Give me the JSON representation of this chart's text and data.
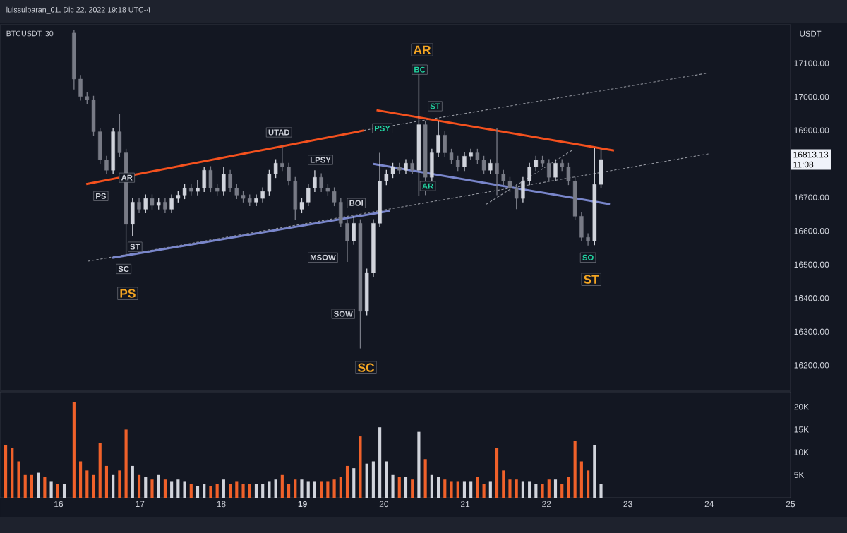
{
  "chart_data": [
    {
      "type": "candlestick",
      "title": "BTCUSDT, 30",
      "ylabel": "USDT",
      "xlim": [
        15.28,
        25.0
      ],
      "ylim": [
        16125,
        17215
      ],
      "tick_labels": "y",
      "yticks": [
        {
          "value": 16200,
          "label": "16200.00"
        },
        {
          "value": 16300,
          "label": "16300.00"
        },
        {
          "value": 16400,
          "label": "16400.00"
        },
        {
          "value": 16500,
          "label": "16500.00"
        },
        {
          "value": 16600,
          "label": "16600.00"
        },
        {
          "value": 16700,
          "label": "16700.00"
        },
        {
          "value": 16900,
          "label": "16900.00"
        },
        {
          "value": 17000,
          "label": "17000.00"
        },
        {
          "value": 17100,
          "label": "17100.00"
        }
      ],
      "series": [
        {
          "type": "candlestick",
          "x": [
            16.19,
            16.27,
            16.35,
            16.43,
            16.51,
            16.59,
            16.67,
            16.75,
            16.83,
            16.91,
            16.99,
            17.07,
            17.15,
            17.23,
            17.31,
            17.39,
            17.47,
            17.55,
            17.63,
            17.71,
            17.79,
            17.87,
            17.95,
            18.03,
            18.11,
            18.19,
            18.27,
            18.35,
            18.43,
            18.51,
            18.59,
            18.67,
            18.75,
            18.83,
            18.91,
            18.99,
            19.07,
            19.15,
            19.23,
            19.31,
            19.39,
            19.47,
            19.55,
            19.63,
            19.71,
            19.79,
            19.87,
            19.95,
            20.03,
            20.11,
            20.19,
            20.27,
            20.35,
            20.43,
            20.51,
            20.59,
            20.67,
            20.75,
            20.83,
            20.91,
            20.99,
            21.07,
            21.15,
            21.23,
            21.31,
            21.39,
            21.47,
            21.55,
            21.63,
            21.71,
            21.79,
            21.87,
            21.95,
            22.03,
            22.11,
            22.19,
            22.27,
            22.35,
            22.43,
            22.51,
            22.59,
            22.67
          ],
          "ohlc": [
            [
              17190,
              17200,
              17022,
              17053
            ],
            [
              17053,
              17065,
              16989,
              17001
            ],
            [
              17001,
              17013,
              16979,
              16991
            ],
            [
              16991,
              17003,
              16884,
              16896
            ],
            [
              16896,
              16908,
              16800,
              16812
            ],
            [
              16812,
              16824,
              16769,
              16781
            ],
            [
              16781,
              16908,
              16769,
              16896
            ],
            [
              16896,
              16949,
              16821,
              16833
            ],
            [
              16833,
              16845,
              16525,
              16620
            ],
            [
              16620,
              16698,
              16586,
              16686
            ],
            [
              16686,
              16698,
              16653,
              16665
            ],
            [
              16665,
              16709,
              16653,
              16697
            ],
            [
              16697,
              16709,
              16664,
              16676
            ],
            [
              16676,
              16698,
              16664,
              16686
            ],
            [
              16686,
              16698,
              16653,
              16665
            ],
            [
              16665,
              16709,
              16653,
              16697
            ],
            [
              16697,
              16719,
              16685,
              16707
            ],
            [
              16707,
              16740,
              16695,
              16728
            ],
            [
              16728,
              16740,
              16706,
              16718
            ],
            [
              16718,
              16752,
              16706,
              16728
            ],
            [
              16728,
              16791,
              16716,
              16781
            ],
            [
              16781,
              16793,
              16716,
              16728
            ],
            [
              16728,
              16740,
              16706,
              16718
            ],
            [
              16718,
              16791,
              16706,
              16770
            ],
            [
              16770,
              16782,
              16716,
              16728
            ],
            [
              16728,
              16740,
              16695,
              16707
            ],
            [
              16707,
              16719,
              16685,
              16697
            ],
            [
              16697,
              16709,
              16674,
              16686
            ],
            [
              16686,
              16709,
              16674,
              16697
            ],
            [
              16697,
              16730,
              16685,
              16718
            ],
            [
              16718,
              16782,
              16706,
              16770
            ],
            [
              16770,
              16814,
              16758,
              16802
            ],
            [
              16802,
              16854,
              16779,
              16791
            ],
            [
              16791,
              16803,
              16737,
              16749
            ],
            [
              16749,
              16761,
              16634,
              16665
            ],
            [
              16665,
              16698,
              16653,
              16686
            ],
            [
              16686,
              16740,
              16674,
              16728
            ],
            [
              16728,
              16781,
              16716,
              16760
            ],
            [
              16760,
              16772,
              16716,
              16728
            ],
            [
              16728,
              16740,
              16706,
              16718
            ],
            [
              16718,
              16730,
              16674,
              16686
            ],
            [
              16686,
              16698,
              16611,
              16623
            ],
            [
              16623,
              16635,
              16508,
              16571
            ],
            [
              16571,
              16644,
              16559,
              16623
            ],
            [
              16623,
              16635,
              16250,
              16361
            ],
            [
              16361,
              16488,
              16349,
              16476
            ],
            [
              16476,
              16635,
              16464,
              16623
            ],
            [
              16623,
              16833,
              16611,
              16749
            ],
            [
              16749,
              16782,
              16737,
              16770
            ],
            [
              16770,
              16803,
              16758,
              16791
            ],
            [
              16791,
              16803,
              16769,
              16781
            ],
            [
              16781,
              16814,
              16769,
              16802
            ],
            [
              16802,
              16814,
              16769,
              16781
            ],
            [
              16781,
              17070,
              16705,
              16917
            ],
            [
              16917,
              16929,
              16707,
              16760
            ],
            [
              16760,
              16845,
              16748,
              16833
            ],
            [
              16833,
              16927,
              16821,
              16886
            ],
            [
              16886,
              16898,
              16821,
              16833
            ],
            [
              16833,
              16845,
              16800,
              16812
            ],
            [
              16812,
              16824,
              16779,
              16791
            ],
            [
              16791,
              16835,
              16779,
              16823
            ],
            [
              16823,
              16845,
              16811,
              16833
            ],
            [
              16833,
              16845,
              16800,
              16812
            ],
            [
              16812,
              16824,
              16769,
              16781
            ],
            [
              16781,
              16814,
              16769,
              16802
            ],
            [
              16802,
              16906,
              16707,
              16770
            ],
            [
              16770,
              16782,
              16737,
              16749
            ],
            [
              16749,
              16761,
              16716,
              16728
            ],
            [
              16728,
              16740,
              16665,
              16697
            ],
            [
              16697,
              16761,
              16685,
              16749
            ],
            [
              16749,
              16803,
              16737,
              16791
            ],
            [
              16791,
              16824,
              16779,
              16812
            ],
            [
              16812,
              16824,
              16790,
              16802
            ],
            [
              16802,
              16814,
              16748,
              16760
            ],
            [
              16760,
              16814,
              16748,
              16802
            ],
            [
              16802,
              16814,
              16779,
              16791
            ],
            [
              16791,
              16803,
              16737,
              16749
            ],
            [
              16749,
              16761,
              16632,
              16644
            ],
            [
              16644,
              16656,
              16569,
              16581
            ],
            [
              16581,
              16593,
              16557,
              16570
            ],
            [
              16570,
              16849,
              16558,
              16739
            ],
            [
              16739,
              16844,
              16727,
              16813
            ]
          ],
          "colors": [
            "#787b86",
            "#787b86",
            "#787b86",
            "#787b86",
            "#787b86",
            "#787b86",
            "#d1d4dc",
            "#787b86",
            "#787b86",
            "#d1d4dc",
            "#787b86",
            "#d1d4dc",
            "#787b86",
            "#d1d4dc",
            "#787b86",
            "#d1d4dc",
            "#d1d4dc",
            "#d1d4dc",
            "#787b86",
            "#d1d4dc",
            "#d1d4dc",
            "#787b86",
            "#787b86",
            "#d1d4dc",
            "#787b86",
            "#787b86",
            "#787b86",
            "#787b86",
            "#d1d4dc",
            "#d1d4dc",
            "#d1d4dc",
            "#d1d4dc",
            "#787b86",
            "#787b86",
            "#787b86",
            "#d1d4dc",
            "#d1d4dc",
            "#d1d4dc",
            "#787b86",
            "#787b86",
            "#787b86",
            "#787b86",
            "#787b86",
            "#d1d4dc",
            "#787b86",
            "#d1d4dc",
            "#d1d4dc",
            "#d1d4dc",
            "#d1d4dc",
            "#d1d4dc",
            "#787b86",
            "#d1d4dc",
            "#787b86",
            "#d1d4dc",
            "#787b86",
            "#d1d4dc",
            "#d1d4dc",
            "#787b86",
            "#787b86",
            "#787b86",
            "#d1d4dc",
            "#d1d4dc",
            "#787b86",
            "#787b86",
            "#d1d4dc",
            "#787b86",
            "#787b86",
            "#787b86",
            "#787b86",
            "#d1d4dc",
            "#d1d4dc",
            "#d1d4dc",
            "#787b86",
            "#787b86",
            "#d1d4dc",
            "#787b86",
            "#787b86",
            "#787b86",
            "#787b86",
            "#787b86",
            "#d1d4dc",
            "#d1d4dc"
          ]
        },
        {
          "type": "line",
          "x": [
            16.36,
            23.99
          ],
          "values": [
            16510,
            16830
          ],
          "color": "#9598a1",
          "line_style": "dashed"
        },
        {
          "type": "line",
          "x": [
            19.75,
            23.96
          ],
          "values": [
            16900,
            17070
          ],
          "color": "#9598a1",
          "line_style": "dashed"
        },
        {
          "type": "line",
          "x": [
            21.26,
            22.31
          ],
          "values": [
            16680,
            16840
          ],
          "color": "#9598a1",
          "line_style": "dashed"
        },
        {
          "type": "line",
          "x": [
            16.34,
            19.76
          ],
          "values": [
            16740,
            16900
          ],
          "color": "#f4511e",
          "line_style": "solid"
        },
        {
          "type": "line",
          "x": [
            19.91,
            22.83
          ],
          "values": [
            16960,
            16840
          ],
          "color": "#f4511e",
          "line_style": "solid"
        },
        {
          "type": "line",
          "x": [
            16.66,
            20.07
          ],
          "values": [
            16520,
            16660
          ],
          "color": "#7986cb",
          "line_style": "solid"
        },
        {
          "type": "line",
          "x": [
            19.87,
            22.78
          ],
          "values": [
            16800,
            16680
          ],
          "color": "#7986cb",
          "line_style": "solid"
        }
      ],
      "annotations": [
        "luissulbaran_01, Dic 22, 2022 19:18 UTC-4",
        "16813.13",
        "11:08",
        {
          "text": "PS",
          "x": 16.52,
          "y": 16704
        },
        {
          "text": "AR",
          "x": 16.84,
          "y": 16759
        },
        {
          "text": "ST",
          "x": 16.94,
          "y": 16553
        },
        {
          "text": "SC",
          "x": 16.8,
          "y": 16487
        },
        {
          "text": "UTAD",
          "x": 18.71,
          "y": 16894
        },
        {
          "text": "LPSY",
          "x": 19.22,
          "y": 16812
        },
        {
          "text": "MSOW",
          "x": 19.25,
          "y": 16521
        },
        {
          "text": "BOI",
          "x": 19.66,
          "y": 16683
        },
        {
          "text": "SOW",
          "x": 19.5,
          "y": 16353
        },
        {
          "text": "PSY",
          "x": 19.98,
          "y": 16906
        },
        {
          "text": "BC",
          "x": 20.44,
          "y": 17081
        },
        {
          "text": "ST",
          "x": 20.63,
          "y": 16972
        },
        {
          "text": "AR",
          "x": 20.54,
          "y": 16734
        },
        {
          "text": "SO",
          "x": 22.51,
          "y": 16521
        },
        {
          "text": "AR",
          "x": 20.47,
          "y": 17140
        },
        {
          "text": "PS",
          "x": 16.85,
          "y": 16414
        },
        {
          "text": "SC",
          "x": 19.78,
          "y": 16193
        },
        {
          "text": "ST",
          "x": 22.55,
          "y": 16456
        }
      ]
    },
    {
      "type": "bar",
      "xlim": [
        15.28,
        25.0
      ],
      "ylim": [
        0,
        23300
      ],
      "xticks": [
        16,
        17,
        18,
        {
          "value": 19,
          "label": "**19**"
        },
        20,
        21,
        22,
        23,
        24,
        25
      ],
      "yticks": [
        {
          "value": 5000,
          "label": "5K"
        },
        {
          "value": 10000,
          "label": "10K"
        },
        {
          "value": 15000,
          "label": "15K"
        },
        {
          "value": 20000,
          "label": "20K"
        }
      ],
      "x": [
        15.35,
        15.43,
        15.51,
        15.59,
        15.67,
        15.75,
        15.83,
        15.91,
        15.99,
        16.07,
        16.19,
        16.27,
        16.35,
        16.43,
        16.51,
        16.59,
        16.67,
        16.75,
        16.83,
        16.91,
        16.99,
        17.07,
        17.15,
        17.23,
        17.31,
        17.39,
        17.47,
        17.55,
        17.63,
        17.71,
        17.79,
        17.87,
        17.95,
        18.03,
        18.11,
        18.19,
        18.27,
        18.35,
        18.43,
        18.51,
        18.59,
        18.67,
        18.75,
        18.83,
        18.91,
        18.99,
        19.07,
        19.15,
        19.23,
        19.31,
        19.39,
        19.47,
        19.55,
        19.63,
        19.71,
        19.79,
        19.87,
        19.95,
        20.03,
        20.11,
        20.19,
        20.27,
        20.35,
        20.43,
        20.51,
        20.59,
        20.67,
        20.75,
        20.83,
        20.91,
        20.99,
        21.07,
        21.15,
        21.23,
        21.31,
        21.39,
        21.47,
        21.55,
        21.63,
        21.71,
        21.79,
        21.87,
        21.95,
        22.03,
        22.11,
        22.19,
        22.27,
        22.35,
        22.43,
        22.51,
        22.59,
        22.67
      ],
      "values": [
        11500,
        11000,
        8000,
        5000,
        5000,
        5500,
        4500,
        3500,
        3000,
        3000,
        21000,
        8000,
        6000,
        5000,
        12000,
        7000,
        5000,
        6000,
        15000,
        7000,
        5000,
        4500,
        4000,
        5000,
        4000,
        3500,
        4000,
        3500,
        3000,
        2500,
        3000,
        2500,
        3000,
        4000,
        3000,
        3500,
        3000,
        3000,
        3000,
        3000,
        3500,
        4000,
        5000,
        3000,
        4000,
        4000,
        3500,
        3500,
        3500,
        3500,
        4000,
        4500,
        7000,
        6500,
        13500,
        7500,
        8000,
        15500,
        8000,
        5000,
        4500,
        4500,
        4000,
        14500,
        8500,
        5000,
        4500,
        4000,
        3500,
        3500,
        3500,
        3500,
        4500,
        3000,
        3500,
        11000,
        6000,
        4000,
        4000,
        3500,
        3500,
        3000,
        3000,
        4000,
        4000,
        3000,
        4500,
        12500,
        8000,
        6000,
        11500,
        3000
      ],
      "colors": [
        "#f0612a",
        "#f0612a",
        "#f0612a",
        "#f0612a",
        "#f0612a",
        "#d1d4dc",
        "#f0612a",
        "#d1d4dc",
        "#f0612a",
        "#d1d4dc",
        "#f0612a",
        "#f0612a",
        "#f0612a",
        "#f0612a",
        "#f0612a",
        "#f0612a",
        "#d1d4dc",
        "#f0612a",
        "#f0612a",
        "#d1d4dc",
        "#f0612a",
        "#d1d4dc",
        "#f0612a",
        "#d1d4dc",
        "#f0612a",
        "#d1d4dc",
        "#d1d4dc",
        "#d1d4dc",
        "#f0612a",
        "#d1d4dc",
        "#d1d4dc",
        "#f0612a",
        "#f0612a",
        "#d1d4dc",
        "#f0612a",
        "#f0612a",
        "#f0612a",
        "#f0612a",
        "#d1d4dc",
        "#d1d4dc",
        "#d1d4dc",
        "#d1d4dc",
        "#f0612a",
        "#f0612a",
        "#f0612a",
        "#d1d4dc",
        "#d1d4dc",
        "#d1d4dc",
        "#f0612a",
        "#f0612a",
        "#f0612a",
        "#f0612a",
        "#f0612a",
        "#d1d4dc",
        "#f0612a",
        "#d1d4dc",
        "#d1d4dc",
        "#d1d4dc",
        "#d1d4dc",
        "#d1d4dc",
        "#f0612a",
        "#d1d4dc",
        "#f0612a",
        "#d1d4dc",
        "#f0612a",
        "#d1d4dc",
        "#d1d4dc",
        "#f0612a",
        "#f0612a",
        "#f0612a",
        "#d1d4dc",
        "#d1d4dc",
        "#f0612a",
        "#f0612a",
        "#d1d4dc",
        "#f0612a",
        "#f0612a",
        "#f0612a",
        "#f0612a",
        "#d1d4dc",
        "#d1d4dc",
        "#d1d4dc",
        "#f0612a",
        "#f0612a",
        "#d1d4dc",
        "#f0612a",
        "#f0612a",
        "#f0612a",
        "#f0612a",
        "#f0612a",
        "#d1d4dc",
        "#d1d4dc"
      ]
    }
  ]
}
